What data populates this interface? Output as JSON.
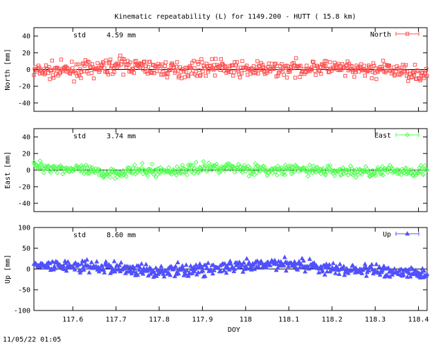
{
  "title": "Kinematic repeatability (L) for 1149.200 - HUTT  ( 15.8 km)",
  "timestamp": "11/05/22 01:05",
  "chart_data": {
    "type": "scatter",
    "xlabel": "DOY",
    "xlim": [
      117.51,
      118.42
    ],
    "xticks": [
      117.6,
      117.7,
      117.8,
      117.9,
      118,
      118.1,
      118.2,
      118.3,
      118.4
    ],
    "xtick_labels": [
      "117.6",
      "117.7",
      "117.8",
      "117.9",
      "118",
      "118.1",
      "118.2",
      "118.3",
      "118.4"
    ],
    "panels": [
      {
        "id": "north",
        "ylabel": "North [mm]",
        "ylim": [
          -50,
          50
        ],
        "yticks": [
          40,
          20,
          0,
          -20,
          -40
        ],
        "ytick_labels": [
          "40",
          "20",
          "0",
          "-20",
          "-40"
        ],
        "std_label": "std",
        "std_value": "4.59 mm",
        "legend": "North",
        "color": "#ff5050",
        "marker": "square",
        "trend": [
          [
            117.51,
            -2
          ],
          [
            117.6,
            -1
          ],
          [
            117.66,
            1
          ],
          [
            117.71,
            6
          ],
          [
            117.76,
            3
          ],
          [
            117.84,
            -1
          ],
          [
            117.9,
            2
          ],
          [
            117.93,
            4
          ],
          [
            117.97,
            0
          ],
          [
            118.05,
            0
          ],
          [
            118.12,
            1
          ],
          [
            118.18,
            3
          ],
          [
            118.25,
            -1
          ],
          [
            118.32,
            0
          ],
          [
            118.38,
            -3
          ],
          [
            118.42,
            -7
          ]
        ],
        "noise": 4.5
      },
      {
        "id": "east",
        "ylabel": "East [mm]",
        "ylim": [
          -50,
          50
        ],
        "yticks": [
          40,
          20,
          0,
          -20,
          -40
        ],
        "ytick_labels": [
          "40",
          "20",
          "0",
          "-20",
          "-40"
        ],
        "std_label": "std",
        "std_value": "3.74 mm",
        "legend": "East",
        "color": "#50ff50",
        "marker": "diamond",
        "trend": [
          [
            117.51,
            5
          ],
          [
            117.56,
            3
          ],
          [
            117.62,
            0
          ],
          [
            117.67,
            -4
          ],
          [
            117.74,
            -1
          ],
          [
            117.84,
            -1
          ],
          [
            117.9,
            3
          ],
          [
            117.95,
            4
          ],
          [
            118.0,
            2
          ],
          [
            118.06,
            -1
          ],
          [
            118.12,
            1
          ],
          [
            118.2,
            -1
          ],
          [
            118.27,
            -2
          ],
          [
            118.34,
            -1
          ],
          [
            118.4,
            -1
          ],
          [
            118.42,
            2
          ]
        ],
        "noise": 3.2
      },
      {
        "id": "up",
        "ylabel": "Up [mm]",
        "ylim": [
          -100,
          100
        ],
        "yticks": [
          100,
          50,
          0,
          -50,
          -100
        ],
        "ytick_labels": [
          "100",
          "50",
          "0",
          "-50",
          "-100"
        ],
        "std_label": "std",
        "std_value": "8.60 mm",
        "legend": "Up",
        "color": "#5050ff",
        "marker": "triangle",
        "trend": [
          [
            117.51,
            5
          ],
          [
            117.58,
            8
          ],
          [
            117.65,
            4
          ],
          [
            117.7,
            3
          ],
          [
            117.78,
            -5
          ],
          [
            117.85,
            -4
          ],
          [
            117.93,
            2
          ],
          [
            118.0,
            5
          ],
          [
            118.08,
            14
          ],
          [
            118.14,
            10
          ],
          [
            118.2,
            -1
          ],
          [
            118.27,
            -2
          ],
          [
            118.34,
            -6
          ],
          [
            118.42,
            -12
          ]
        ],
        "noise": 7.5
      }
    ]
  }
}
